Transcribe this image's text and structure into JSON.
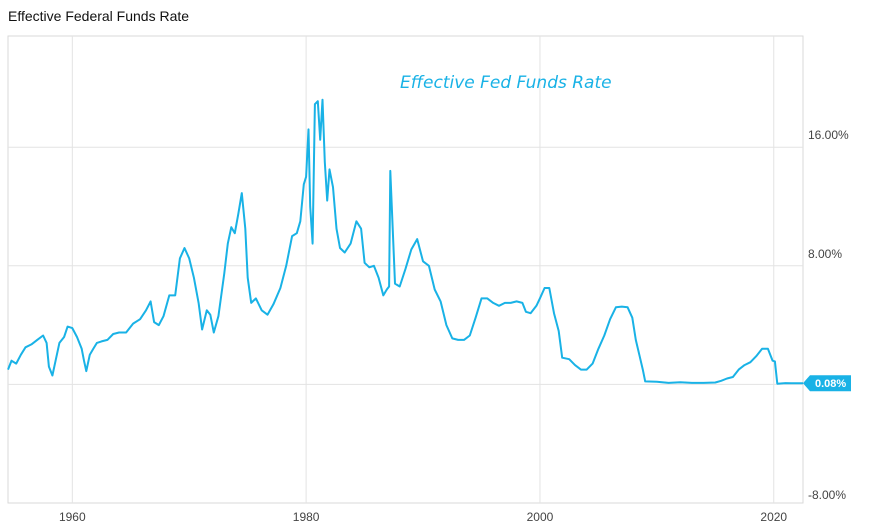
{
  "chart_data": {
    "type": "line",
    "title": "Effective Federal Funds Rate",
    "annotation": "Effective Fed Funds Rate",
    "xlabel": "",
    "ylabel": "",
    "xlim": [
      1954.5,
      2022.5
    ],
    "ylim": [
      -8,
      23.5
    ],
    "x_ticks": [
      "1960",
      "1980",
      "2000",
      "2020"
    ],
    "x_tick_values": [
      1960,
      1980,
      2000,
      2020
    ],
    "y_ticks": [
      "16.00%",
      "8.00%",
      "-8.00%"
    ],
    "y_tick_values": [
      16,
      8,
      -8
    ],
    "last_value_label": "0.08%",
    "last_value": 0.08,
    "line_color": "#19b2e6",
    "grid": true,
    "series": [
      {
        "name": "Effective Fed Funds Rate",
        "x": [
          1954.5,
          1954.8,
          1955.2,
          1955.6,
          1956.0,
          1956.5,
          1957.0,
          1957.5,
          1957.8,
          1958.0,
          1958.3,
          1958.6,
          1958.9,
          1959.3,
          1959.6,
          1960.0,
          1960.4,
          1960.8,
          1961.0,
          1961.2,
          1961.5,
          1961.8,
          1962.1,
          1962.5,
          1963.0,
          1963.5,
          1964.0,
          1964.6,
          1965.2,
          1965.8,
          1966.3,
          1966.7,
          1967.0,
          1967.4,
          1967.8,
          1968.3,
          1968.8,
          1969.2,
          1969.6,
          1970.0,
          1970.4,
          1970.8,
          1971.1,
          1971.5,
          1971.8,
          1972.1,
          1972.5,
          1973.0,
          1973.3,
          1973.6,
          1973.9,
          1974.2,
          1974.5,
          1974.8,
          1975.0,
          1975.3,
          1975.7,
          1976.2,
          1976.7,
          1977.2,
          1977.8,
          1978.3,
          1978.8,
          1979.2,
          1979.5,
          1979.8,
          1980.0,
          1980.2,
          1980.35,
          1980.55,
          1980.75,
          1981.0,
          1981.2,
          1981.4,
          1981.6,
          1981.8,
          1982.0,
          1982.3,
          1982.6,
          1982.9,
          1983.3,
          1983.8,
          1984.3,
          1984.7,
          1985.0,
          1985.4,
          1985.8,
          1986.2,
          1986.6,
          1986.9,
          1987.1,
          1987.2,
          1987.6,
          1988.0,
          1988.5,
          1989.0,
          1989.5,
          1990.0,
          1990.5,
          1991.0,
          1991.5,
          1992.0,
          1992.5,
          1993.0,
          1993.5,
          1994.0,
          1994.5,
          1995.0,
          1995.5,
          1996.0,
          1996.5,
          1997.0,
          1997.5,
          1998.0,
          1998.5,
          1998.8,
          1999.2,
          1999.7,
          2000.0,
          2000.4,
          2000.8,
          2001.2,
          2001.6,
          2001.9,
          2002.5,
          2003.0,
          2003.5,
          2004.0,
          2004.5,
          2005.0,
          2005.5,
          2006.0,
          2006.5,
          2007.0,
          2007.5,
          2007.9,
          2008.2,
          2008.5,
          2008.8,
          2009.0,
          2010.0,
          2011.0,
          2012.0,
          2013.0,
          2014.0,
          2015.0,
          2015.5,
          2016.0,
          2016.5,
          2017.0,
          2017.5,
          2018.0,
          2018.5,
          2019.0,
          2019.5,
          2019.9,
          2020.1,
          2020.3,
          2021.0,
          2021.5,
          2022.0,
          2022.5
        ],
        "values": [
          1.0,
          1.6,
          1.4,
          2.0,
          2.5,
          2.7,
          3.0,
          3.3,
          2.8,
          1.2,
          0.6,
          1.7,
          2.8,
          3.2,
          3.9,
          3.8,
          3.2,
          2.4,
          1.6,
          0.9,
          2.0,
          2.4,
          2.8,
          2.9,
          3.0,
          3.4,
          3.5,
          3.5,
          4.1,
          4.4,
          5.0,
          5.6,
          4.2,
          4.0,
          4.6,
          6.0,
          6.0,
          8.5,
          9.2,
          8.5,
          7.2,
          5.5,
          3.7,
          5.0,
          4.7,
          3.5,
          4.6,
          7.5,
          9.5,
          10.6,
          10.2,
          11.5,
          12.9,
          10.5,
          7.2,
          5.5,
          5.8,
          5.0,
          4.7,
          5.4,
          6.5,
          8.0,
          10.0,
          10.2,
          11.0,
          13.5,
          14.0,
          17.2,
          12.0,
          9.5,
          18.9,
          19.1,
          16.5,
          19.2,
          15.0,
          12.4,
          14.5,
          13.3,
          10.5,
          9.2,
          8.9,
          9.5,
          11.0,
          10.5,
          8.2,
          7.9,
          8.0,
          7.2,
          6.0,
          6.4,
          6.6,
          14.4,
          6.8,
          6.6,
          7.8,
          9.1,
          9.8,
          8.3,
          8.0,
          6.4,
          5.6,
          4.0,
          3.1,
          3.0,
          3.0,
          3.3,
          4.5,
          5.8,
          5.8,
          5.5,
          5.3,
          5.5,
          5.5,
          5.6,
          5.5,
          4.9,
          4.8,
          5.3,
          5.8,
          6.5,
          6.5,
          4.8,
          3.6,
          1.8,
          1.7,
          1.3,
          1.0,
          1.0,
          1.4,
          2.4,
          3.3,
          4.4,
          5.2,
          5.25,
          5.2,
          4.5,
          3.0,
          2.0,
          1.0,
          0.2,
          0.18,
          0.1,
          0.15,
          0.1,
          0.1,
          0.13,
          0.24,
          0.4,
          0.5,
          1.0,
          1.3,
          1.5,
          1.9,
          2.4,
          2.4,
          1.6,
          1.55,
          0.05,
          0.09,
          0.08,
          0.08,
          0.08
        ]
      }
    ]
  }
}
